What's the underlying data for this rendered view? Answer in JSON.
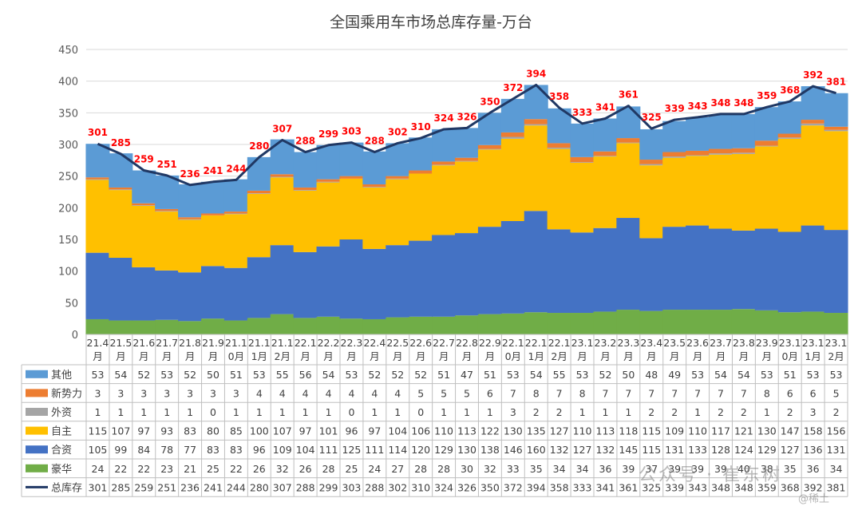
{
  "chart_data": {
    "type": "bar",
    "stacked": true,
    "title": "全国乘用车市场总库存量-万台",
    "categories": [
      "21.4月",
      "21.5月",
      "21.6月",
      "21.7月",
      "21.8月",
      "21.9月",
      "21.10月",
      "21.11月",
      "21.12月",
      "22.1月",
      "22.2月",
      "22.3月",
      "22.4月",
      "22.5月",
      "22.6月",
      "22.7月",
      "22.8月",
      "22.9月",
      "22.10月",
      "22.11月",
      "22.12月",
      "23.1月",
      "23.2月",
      "23.3月",
      "23.4月",
      "23.5月",
      "23.6月",
      "23.7月",
      "23.8月",
      "23.9月",
      "23.10月",
      "23.11月",
      "23.12月"
    ],
    "category_lines": [
      [
        "21.4",
        "月"
      ],
      [
        "21.5",
        "月"
      ],
      [
        "21.6",
        "月"
      ],
      [
        "21.7",
        "月"
      ],
      [
        "21.8",
        "月"
      ],
      [
        "21.9",
        "月"
      ],
      [
        "21.1",
        "0月"
      ],
      [
        "21.1",
        "1月"
      ],
      [
        "21.1",
        "2月"
      ],
      [
        "22.1",
        "月"
      ],
      [
        "22.2",
        "月"
      ],
      [
        "22.3",
        "月"
      ],
      [
        "22.4",
        "月"
      ],
      [
        "22.5",
        "月"
      ],
      [
        "22.6",
        "月"
      ],
      [
        "22.7",
        "月"
      ],
      [
        "22.8",
        "月"
      ],
      [
        "22.9",
        "月"
      ],
      [
        "22.1",
        "0月"
      ],
      [
        "22.1",
        "1月"
      ],
      [
        "22.1",
        "2月"
      ],
      [
        "23.1",
        "月"
      ],
      [
        "23.2",
        "月"
      ],
      [
        "23.3",
        "月"
      ],
      [
        "23.4",
        "月"
      ],
      [
        "23.5",
        "月"
      ],
      [
        "23.6",
        "月"
      ],
      [
        "23.7",
        "月"
      ],
      [
        "23.8",
        "月"
      ],
      [
        "23.9",
        "月"
      ],
      [
        "23.1",
        "0月"
      ],
      [
        "23.1",
        "1月"
      ],
      [
        "23.1",
        "2月"
      ]
    ],
    "series": [
      {
        "name": "豪华",
        "color": "#70ad47",
        "values": [
          24,
          22,
          22,
          23,
          21,
          25,
          22,
          26,
          32,
          26,
          28,
          25,
          24,
          27,
          28,
          28,
          30,
          32,
          33,
          35,
          34,
          34,
          36,
          39,
          37,
          39,
          39,
          39,
          40,
          38,
          35,
          36,
          34
        ]
      },
      {
        "name": "合资",
        "color": "#4472c4",
        "values": [
          105,
          99,
          84,
          78,
          77,
          83,
          83,
          96,
          109,
          104,
          111,
          125,
          111,
          114,
          120,
          129,
          130,
          138,
          146,
          160,
          132,
          127,
          132,
          145,
          115,
          131,
          133,
          128,
          124,
          129,
          127,
          136,
          131
        ]
      },
      {
        "name": "自主",
        "color": "#ffc000",
        "values": [
          115,
          107,
          97,
          93,
          83,
          80,
          85,
          100,
          107,
          97,
          101,
          96,
          97,
          104,
          106,
          110,
          113,
          122,
          130,
          135,
          127,
          110,
          113,
          118,
          115,
          109,
          110,
          117,
          121,
          130,
          147,
          158,
          156
        ]
      },
      {
        "name": "外资",
        "color": "#a5a5a5",
        "values": [
          1,
          1,
          1,
          1,
          1,
          0,
          1,
          1,
          1,
          1,
          1,
          0,
          1,
          1,
          0,
          1,
          1,
          1,
          3,
          2,
          2,
          1,
          1,
          1,
          2,
          2,
          1,
          2,
          2,
          1,
          2,
          3,
          2
        ]
      },
      {
        "name": "新势力",
        "color": "#ed7d31",
        "values": [
          3,
          3,
          3,
          3,
          3,
          3,
          3,
          4,
          4,
          4,
          4,
          4,
          4,
          4,
          5,
          5,
          5,
          6,
          7,
          8,
          7,
          8,
          7,
          7,
          7,
          7,
          7,
          7,
          7,
          8,
          6,
          6,
          5
        ]
      },
      {
        "name": "其他",
        "color": "#5b9bd5",
        "values": [
          53,
          54,
          52,
          53,
          52,
          50,
          51,
          53,
          55,
          56,
          54,
          53,
          52,
          52,
          52,
          51,
          47,
          51,
          53,
          54,
          55,
          53,
          52,
          50,
          48,
          49,
          53,
          54,
          54,
          53,
          51,
          53,
          53
        ]
      }
    ],
    "line": {
      "name": "总库存",
      "color": "#203864",
      "label_color": "#ff0000",
      "values": [
        301,
        285,
        259,
        251,
        236,
        241,
        244,
        280,
        307,
        288,
        299,
        303,
        288,
        302,
        310,
        324,
        326,
        350,
        372,
        394,
        358,
        333,
        341,
        361,
        325,
        339,
        343,
        348,
        348,
        359,
        368,
        392,
        381
      ]
    },
    "table_order": [
      "其他",
      "新势力",
      "外资",
      "自主",
      "合资",
      "豪华",
      "总库存"
    ],
    "ylim": [
      0,
      450
    ],
    "yticks": [
      0,
      50,
      100,
      150,
      200,
      250,
      300,
      350,
      400,
      450
    ],
    "grid": true,
    "legend": "bottom-table"
  },
  "watermark": "公众号 · 崔东树",
  "watermark_small": "@稀土"
}
